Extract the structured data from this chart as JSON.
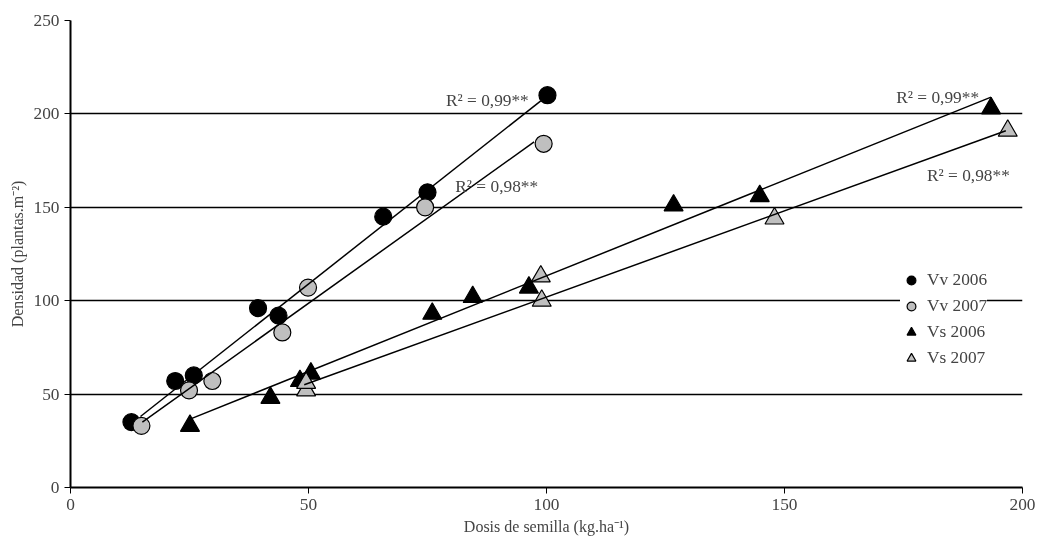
{
  "chart_data": {
    "type": "scatter",
    "xlabel": "Dosis de semilla (kg.ha⁻¹)",
    "ylabel": "Densidad (plantas.m⁻²)",
    "xlim": [
      0,
      200
    ],
    "ylim": [
      0,
      250
    ],
    "xticks": [
      0,
      50,
      100,
      150,
      200
    ],
    "yticks": [
      0,
      50,
      100,
      150,
      200,
      250
    ],
    "grid": "y",
    "legend": "right",
    "series": [
      {
        "name": "Vv 2006",
        "color": "#000000",
        "marker": "circle",
        "x": [
          12.8,
          22,
          25.9,
          39.4,
          43.7,
          65.7,
          75,
          100.2
        ],
        "values": [
          35,
          57,
          60,
          96,
          92,
          145,
          158,
          210
        ]
      },
      {
        "name": "Vv 2007",
        "color": "#bfbfbf",
        "marker": "circle",
        "x": [
          14.9,
          24.9,
          29.8,
          44.5,
          49.9,
          74.5,
          99.4
        ],
        "values": [
          33,
          52,
          57,
          83,
          107,
          150,
          184
        ]
      },
      {
        "name": "Vs 2006",
        "color": "#000000",
        "marker": "triangle",
        "x": [
          25.1,
          42,
          48.2,
          50.5,
          76,
          84.5,
          96.3,
          126.7,
          144.8,
          193.4
        ],
        "values": [
          33,
          48,
          57,
          61,
          93,
          102,
          107,
          151,
          156,
          203
        ]
      },
      {
        "name": "Vs 2007",
        "color": "#bfbfbf",
        "marker": "triangle",
        "x": [
          49.5,
          49.5,
          99,
          98.8,
          147.9,
          196.9
        ],
        "values": [
          52,
          56,
          100,
          113,
          144,
          191
        ]
      },
      {
        "type": "line",
        "color": "#000000",
        "x": [
          14.7,
          98.8
        ],
        "values": [
          38,
          207
        ]
      },
      {
        "type": "line",
        "color": "#000000",
        "x": [
          15.1,
          97.4
        ],
        "values": [
          35,
          185
        ]
      },
      {
        "type": "line",
        "color": "#000000",
        "x": [
          25.5,
          193.4
        ],
        "values": [
          37,
          209
        ]
      },
      {
        "type": "line",
        "color": "#000000",
        "x": [
          49.1,
          196.5
        ],
        "values": [
          55,
          191
        ]
      }
    ],
    "annotations": [
      "R² = 0,99**",
      "R² = 0,98**",
      "R² = 0,99**",
      "R² = 0,98**"
    ]
  }
}
